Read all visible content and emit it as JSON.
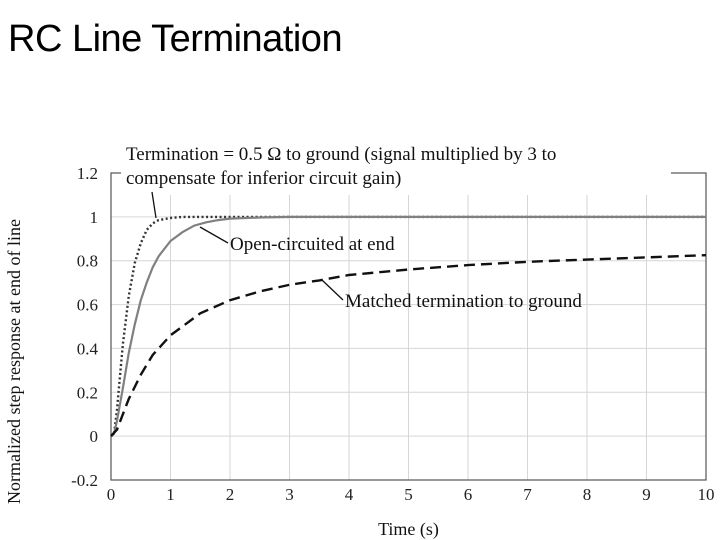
{
  "slide": {
    "title": "RC Line Termination"
  },
  "chart_data": {
    "type": "line",
    "xlabel": "Time (s)",
    "ylabel": "Normalized step response at end of line",
    "xlim": [
      0,
      10
    ],
    "ylim": [
      -0.2,
      1.2
    ],
    "xticks": [
      "0",
      "1",
      "2",
      "3",
      "4",
      "5",
      "6",
      "7",
      "8",
      "9",
      "10"
    ],
    "yticks": [
      "1.2",
      "1",
      "0.8",
      "0.6",
      "0.4",
      "0.2",
      "0",
      "-0.2"
    ],
    "grid": true,
    "legend": "none",
    "series": [
      {
        "name": "Termination = 0.5 Ω to ground (signal multiplied by 3 to compensate for inferior circuit gain)",
        "style": "dotted",
        "color": "#333333",
        "x": [
          0,
          0.05,
          0.1,
          0.15,
          0.2,
          0.3,
          0.4,
          0.5,
          0.6,
          0.7,
          0.8,
          1.0,
          1.2,
          1.5,
          2,
          3,
          4,
          5,
          6,
          7,
          8,
          9,
          10
        ],
        "y": [
          0,
          0.01,
          0.12,
          0.27,
          0.42,
          0.64,
          0.79,
          0.88,
          0.94,
          0.97,
          0.985,
          0.995,
          1.0,
          1.0,
          1.0,
          1.0,
          1.0,
          1.0,
          1.0,
          1.0,
          1.0,
          1.0,
          1.0
        ]
      },
      {
        "name": "Open-circuited at end",
        "style": "solid",
        "color": "#808080",
        "x": [
          0,
          0.05,
          0.1,
          0.2,
          0.3,
          0.4,
          0.5,
          0.6,
          0.7,
          0.8,
          1.0,
          1.2,
          1.4,
          1.6,
          1.8,
          2.0,
          2.5,
          3,
          4,
          5,
          6,
          7,
          8,
          9,
          10
        ],
        "y": [
          0,
          0.01,
          0.07,
          0.22,
          0.38,
          0.51,
          0.62,
          0.7,
          0.77,
          0.82,
          0.89,
          0.93,
          0.96,
          0.975,
          0.985,
          0.992,
          0.997,
          1.0,
          1.0,
          1.0,
          1.0,
          1.0,
          1.0,
          1.0,
          1.0
        ]
      },
      {
        "name": "Matched termination to ground",
        "style": "dashed",
        "color": "#111111",
        "x": [
          0,
          0.1,
          0.2,
          0.3,
          0.5,
          0.7,
          1.0,
          1.5,
          2,
          2.5,
          3,
          3.5,
          4,
          5,
          6,
          7,
          8,
          9,
          10
        ],
        "y": [
          0,
          0.03,
          0.1,
          0.17,
          0.28,
          0.37,
          0.46,
          0.56,
          0.62,
          0.66,
          0.69,
          0.71,
          0.735,
          0.76,
          0.78,
          0.795,
          0.805,
          0.815,
          0.825
        ]
      }
    ],
    "annotations": [
      {
        "lines": [
          "Termination = 0.5 Ω to ground (signal multiplied by 3 to",
          "compensate for inferior circuit gain)"
        ],
        "series": 0
      },
      {
        "lines": [
          "Open-circuited at end"
        ],
        "series": 1
      },
      {
        "lines": [
          "Matched termination to ground"
        ],
        "series": 2
      }
    ]
  }
}
